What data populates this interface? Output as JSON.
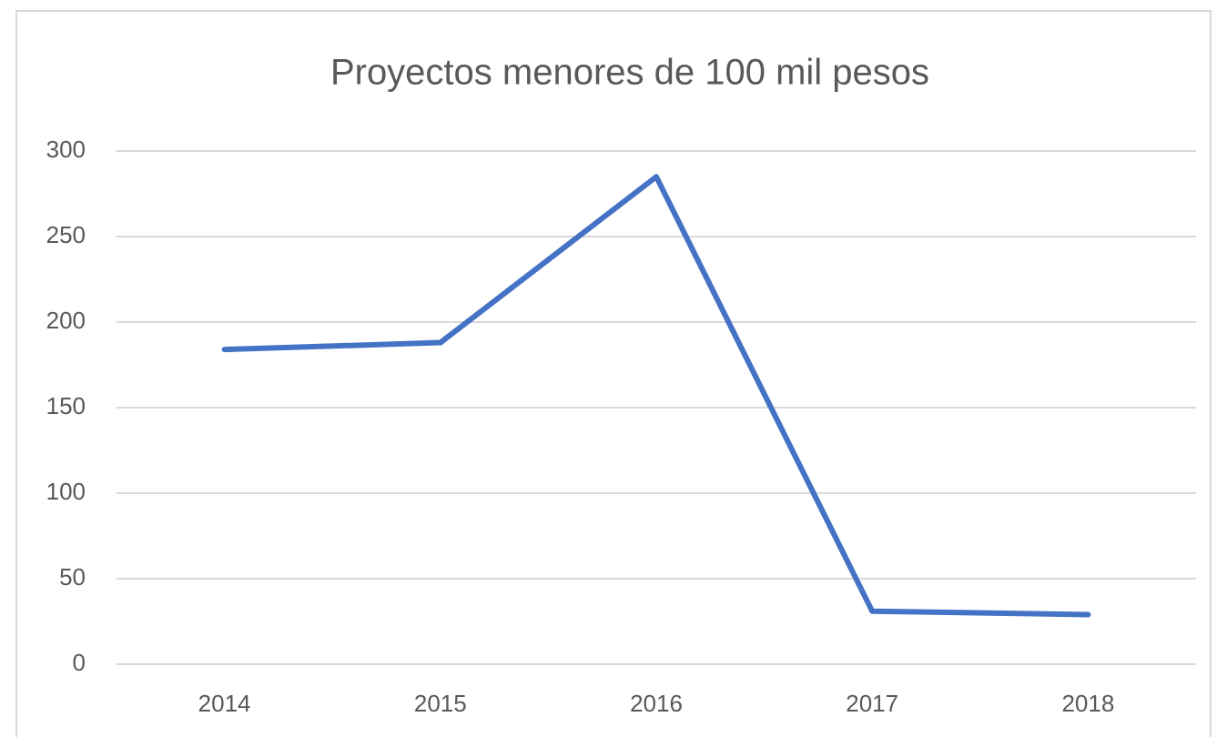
{
  "chart_data": {
    "type": "line",
    "title": "Proyectos menores de 100 mil pesos",
    "categories": [
      "2014",
      "2015",
      "2016",
      "2017",
      "2018"
    ],
    "values": [
      184,
      188,
      285,
      31,
      29
    ],
    "color": "#4472c4",
    "ylim": [
      0,
      300
    ],
    "yticks": [
      0,
      50,
      100,
      150,
      200,
      250,
      300
    ],
    "grid": true
  }
}
